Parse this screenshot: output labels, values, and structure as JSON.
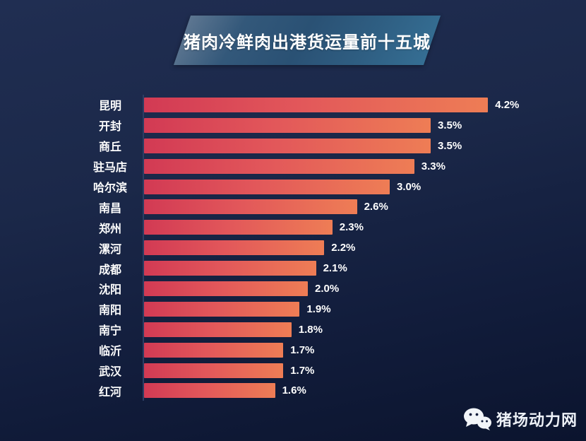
{
  "title": "猪肉冷鲜肉出港货运量前十五城",
  "brand": {
    "name": "猪场动力网",
    "icon": "wechat-icon"
  },
  "colors": {
    "background_top": "#202e52",
    "background_bottom": "#0b142e",
    "banner_blue": "#2c5878",
    "bar_gradient_start": "#d23a54",
    "bar_gradient_end": "#ee7d55",
    "axis_line": "#2c3d63",
    "text": "#ffffff"
  },
  "chart_data": {
    "type": "bar",
    "orientation": "horizontal",
    "title": "猪肉冷鲜肉出港货运量前十五城",
    "categories": [
      "昆明",
      "开封",
      "商丘",
      "驻马店",
      "哈尔滨",
      "南昌",
      "郑州",
      "漯河",
      "成都",
      "沈阳",
      "南阳",
      "南宁",
      "临沂",
      "武汉",
      "红河"
    ],
    "values": [
      4.2,
      3.5,
      3.5,
      3.3,
      3.0,
      2.6,
      2.3,
      2.2,
      2.1,
      2.0,
      1.9,
      1.8,
      1.7,
      1.7,
      1.6
    ],
    "value_labels": [
      "4.2%",
      "3.5%",
      "3.5%",
      "3.3%",
      "3.0%",
      "2.6%",
      "2.3%",
      "2.2%",
      "2.1%",
      "2.0%",
      "1.9%",
      "1.8%",
      "1.7%",
      "1.7%",
      "1.6%"
    ],
    "unit": "%",
    "xlim": [
      0,
      4.4
    ],
    "grid": false,
    "legend": false,
    "sort": "descending"
  }
}
